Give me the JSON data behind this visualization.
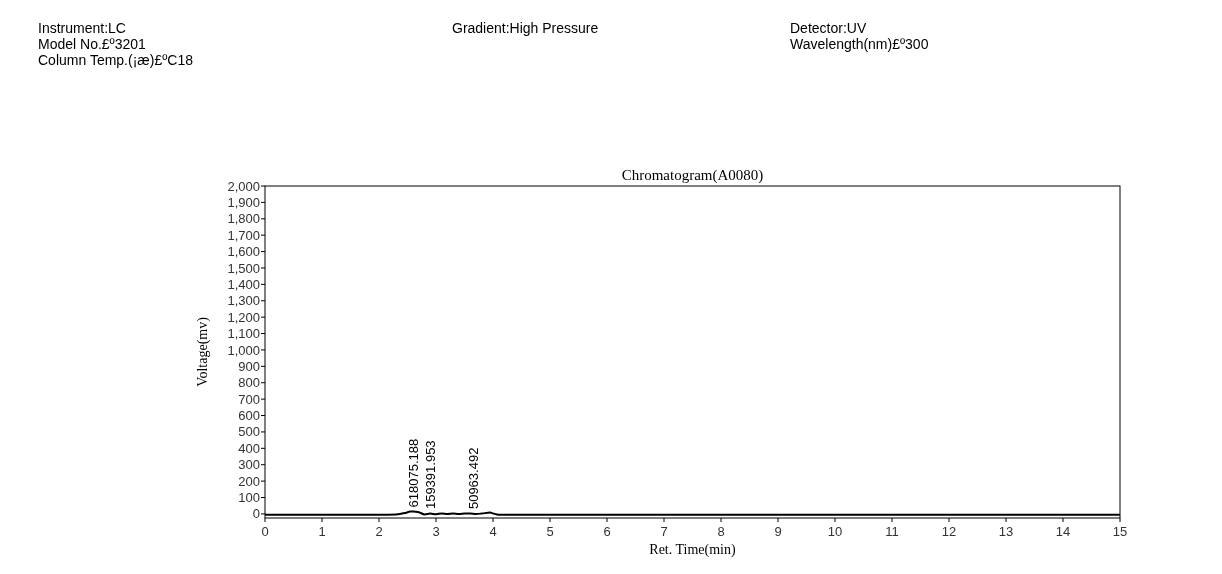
{
  "chart_data": {
    "type": "line",
    "title": "Chromatogram(A0080)",
    "xlabel": "Ret. Time(min)",
    "ylabel": "Voltage(mv)",
    "annotations": [
      "Instrument:LC",
      "Model No.£º3201",
      "Column Temp.(¡æ)£ºC18",
      "Gradient:High Pressure",
      "Detector:UV",
      "Wavelength(nm)£º300",
      {
        "text": "618075.188",
        "x": 2.6,
        "y": 15
      },
      {
        "text": "159391.953",
        "x": 2.9,
        "y": 5
      },
      {
        "text": "50963.492",
        "x": 3.65,
        "y": 5
      }
    ],
    "x": [
      0,
      0.5,
      1,
      1.5,
      2,
      2.3,
      2.45,
      2.55,
      2.6,
      2.7,
      2.8,
      2.9,
      3.0,
      3.1,
      3.2,
      3.3,
      3.4,
      3.5,
      3.6,
      3.7,
      3.8,
      3.95,
      4.0,
      4.1,
      5,
      6,
      8,
      10,
      12,
      15
    ],
    "series": [
      {
        "color": "#000000",
        "values": [
          -5,
          -5,
          -5,
          -5,
          -5,
          -3,
          5,
          14,
          15,
          10,
          -3,
          2,
          -2,
          3,
          0,
          2,
          -1,
          2,
          3,
          0,
          2,
          8,
          3,
          -5,
          -5,
          -5,
          -5,
          -5,
          -5,
          -5
        ]
      }
    ],
    "xlim": [
      0,
      15
    ],
    "xticks": [
      0,
      1,
      2,
      3,
      4,
      5,
      6,
      7,
      8,
      9,
      10,
      11,
      12,
      13,
      14,
      15
    ],
    "ylim": [
      -25,
      2000
    ],
    "yticks": [
      {
        "value": 0,
        "label": "0"
      },
      {
        "value": 100,
        "label": "100"
      },
      {
        "value": 200,
        "label": "200"
      },
      {
        "value": 300,
        "label": "300"
      },
      {
        "value": 400,
        "label": "400"
      },
      {
        "value": 500,
        "label": "500"
      },
      {
        "value": 600,
        "label": "600"
      },
      {
        "value": 700,
        "label": "700"
      },
      {
        "value": 800,
        "label": "800"
      },
      {
        "value": 900,
        "label": "900"
      },
      {
        "value": 1000,
        "label": "1,000"
      },
      {
        "value": 1100,
        "label": "1,100"
      },
      {
        "value": 1200,
        "label": "1,200"
      },
      {
        "value": 1300,
        "label": "1,300"
      },
      {
        "value": 1400,
        "label": "1,400"
      },
      {
        "value": 1500,
        "label": "1,500"
      },
      {
        "value": 1600,
        "label": "1,600"
      },
      {
        "value": 1700,
        "label": "1,700"
      },
      {
        "value": 1800,
        "label": "1,800"
      },
      {
        "value": 1900,
        "label": "1,900"
      },
      {
        "value": 2000,
        "label": "2,000"
      }
    ],
    "grid": false
  }
}
